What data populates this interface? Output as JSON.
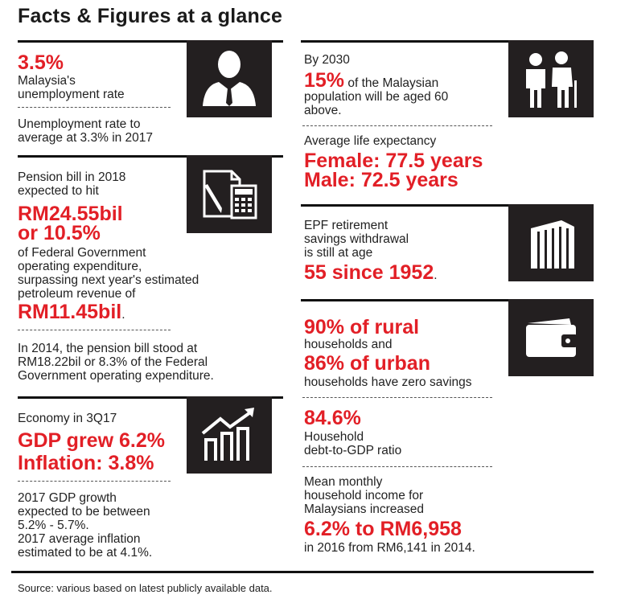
{
  "title": "Facts & Figures at a glance",
  "colors": {
    "accent": "#e21f26",
    "tile": "#231f20",
    "text": "#222222"
  },
  "left": {
    "unemployment": {
      "value": "3.5%",
      "label_l1": "Malaysia's",
      "label_l2": "unemployment rate",
      "note_l1": "Unemployment rate to",
      "note_l2": "average at 3.3% in 2017",
      "icon": "businessman-icon"
    },
    "pension": {
      "intro_l1": "Pension bill in 2018",
      "intro_l2": "expected to hit",
      "value_l1": "RM24.55bil",
      "value_l2": "or 10.5%",
      "desc_l1": "of Federal Government",
      "desc_l2": "operating expenditure,",
      "desc_l3": "surpassing next year's estimated",
      "desc_l4": "petroleum revenue of",
      "revenue": "RM11.45bil",
      "revenue_suffix": ".",
      "note_l1": "In 2014, the pension bill stood at",
      "note_l2": "RM18.22bil or 8.3% of the Federal",
      "note_l3": "Government operating expenditure.",
      "icon": "calculator-icon"
    },
    "economy": {
      "intro": "Economy in 3Q17",
      "gdp": "GDP grew 6.2%",
      "inflation": "Inflation: 3.8%",
      "note_l1": "2017 GDP growth",
      "note_l2": "expected to be between",
      "note_l3": "5.2% - 5.7%.",
      "note_l4": "2017 average inflation",
      "note_l5": "estimated to be at 4.1%.",
      "icon": "growth-chart-icon"
    }
  },
  "right": {
    "ageing": {
      "intro": "By 2030",
      "value": "15%",
      "desc_l1": " of the Malaysian",
      "desc_l2": "population will be aged 60",
      "desc_l3": "above.",
      "icon": "elderly-couple-icon"
    },
    "life": {
      "intro": "Average life expectancy",
      "female": "Female: 77.5 years",
      "male": "Male: 72.5 years"
    },
    "epf": {
      "intro_l1": "EPF retirement",
      "intro_l2": "savings withdrawal",
      "intro_l3": "is still at age",
      "value": "55 since 1952",
      "value_suffix": ".",
      "icon": "building-icon"
    },
    "savings": {
      "rural": "90% of rural",
      "rural_label": "households and",
      "urban": "86% of urban",
      "urban_label": "households have zero savings",
      "icon": "wallet-icon"
    },
    "debt": {
      "value": "84.6%",
      "label_l1": "Household",
      "label_l2": "debt-to-GDP ratio"
    },
    "income": {
      "intro_l1": "Mean monthly",
      "intro_l2": "household income for",
      "intro_l3": "Malaysians increased",
      "value": "6.2% to RM6,958",
      "note": "in 2016 from RM6,141 in 2014."
    }
  },
  "source": "Source: various based on latest publicly available data."
}
